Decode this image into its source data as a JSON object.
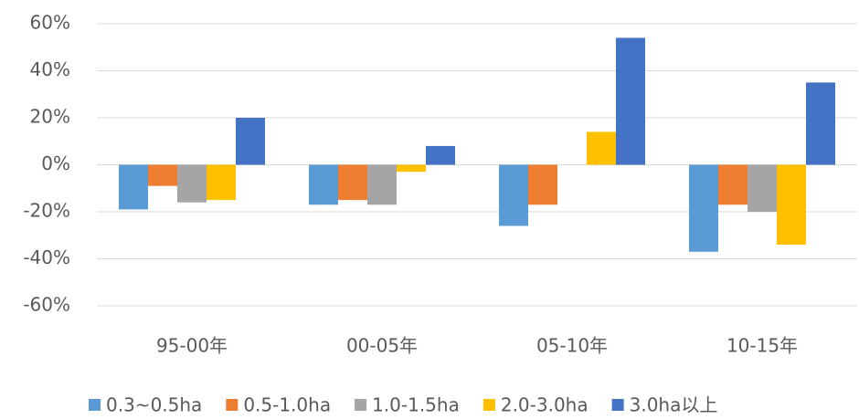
{
  "chart_data": {
    "type": "bar",
    "categories": [
      "95-00年",
      "00-05年",
      "05-10年",
      "10-15年"
    ],
    "series": [
      {
        "name": "0.3~0.5ha",
        "color": "#5b9bd5",
        "values": [
          -19,
          -17,
          -26,
          -37
        ]
      },
      {
        "name": "0.5-1.0ha",
        "color": "#ed7d31",
        "values": [
          -9,
          -15,
          -17,
          -17
        ]
      },
      {
        "name": "1.0-1.5ha",
        "color": "#a5a5a5",
        "values": [
          -16,
          -17,
          0,
          -20
        ]
      },
      {
        "name": "2.0-3.0ha",
        "color": "#ffc000",
        "values": [
          -15,
          -3,
          14,
          -34
        ]
      },
      {
        "name": "3.0ha以上",
        "color": "#4472c4",
        "values": [
          20,
          8,
          54,
          35
        ]
      }
    ],
    "ylim": [
      -60,
      60
    ],
    "yticks": [
      {
        "value": -60,
        "label": "-60%"
      },
      {
        "value": -40,
        "label": "-40%"
      },
      {
        "value": -20,
        "label": "-20%"
      },
      {
        "value": 0,
        "label": "0%"
      },
      {
        "value": 20,
        "label": "20%"
      },
      {
        "value": 40,
        "label": "40%"
      },
      {
        "value": 60,
        "label": "60%"
      }
    ],
    "grid": true,
    "legend": "bottom"
  }
}
